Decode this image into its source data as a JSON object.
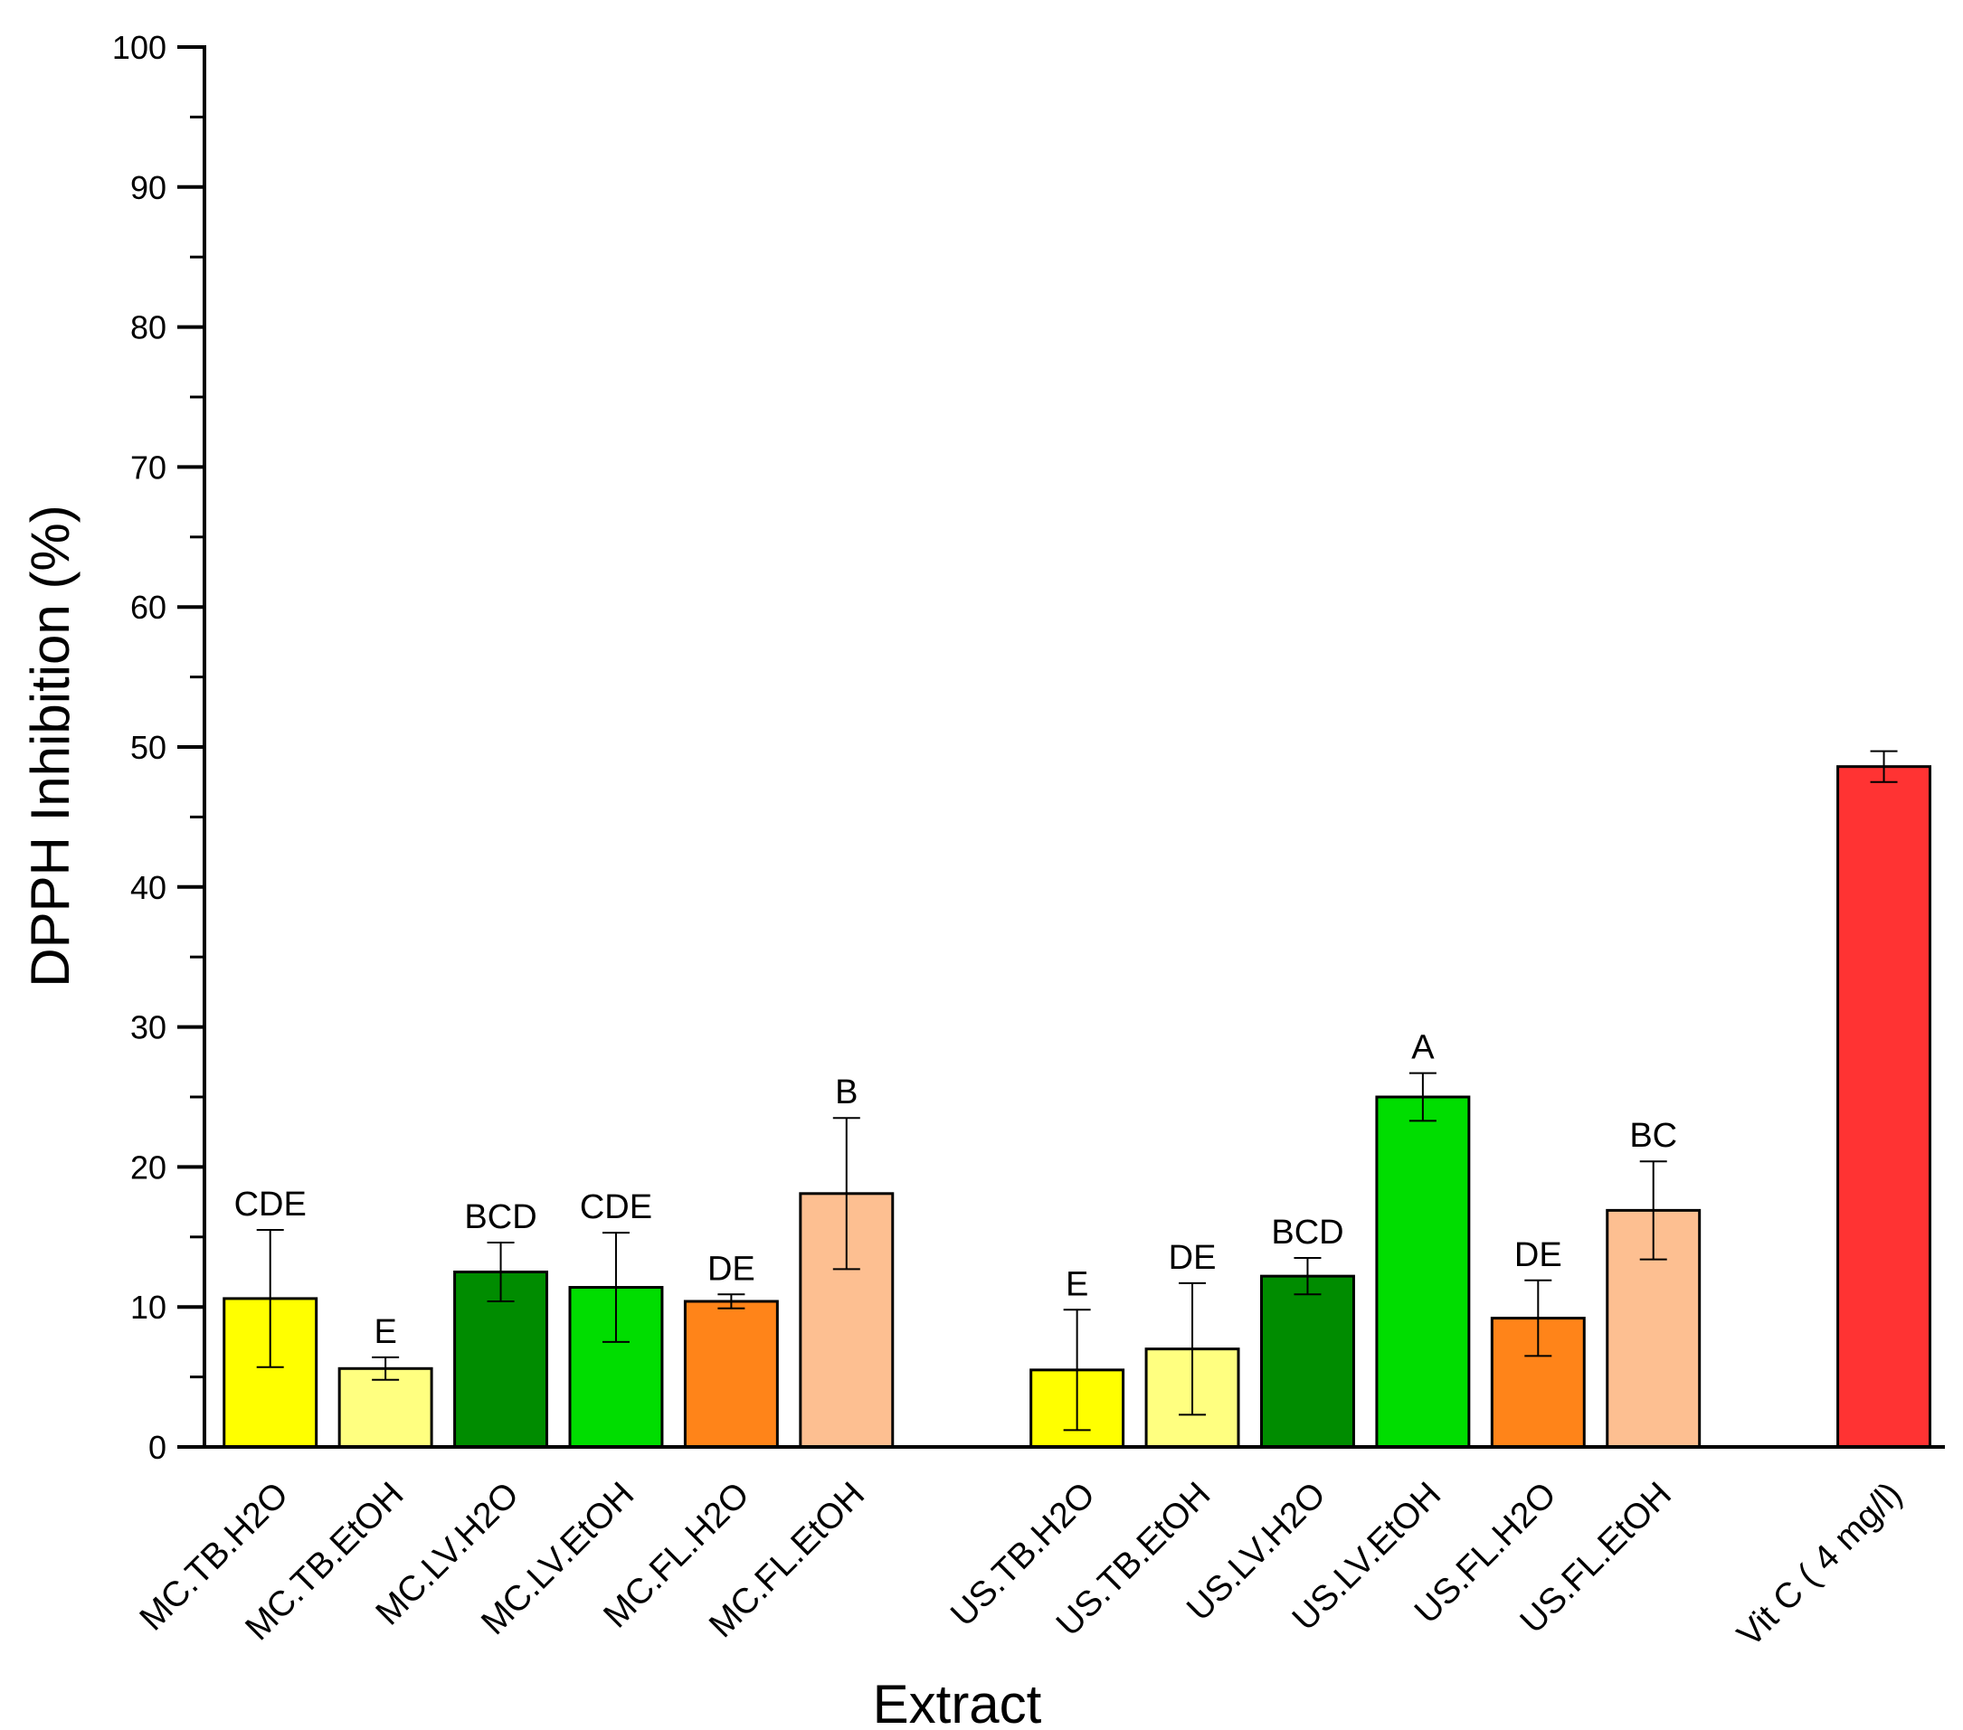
{
  "chart_data": {
    "type": "bar",
    "title": "",
    "xlabel": "Extract",
    "ylabel": "DPPH Inhibition (%)",
    "ylim": [
      0,
      100
    ],
    "yticks": [
      0,
      10,
      20,
      30,
      40,
      50,
      60,
      70,
      80,
      90,
      100
    ],
    "grid": false,
    "legend": "none",
    "categories": [
      "MC.TB.H2O",
      "MC.TB.EtOH",
      "MC.LV.H2O",
      "MC.LV.EtOH",
      "MC.FL.H2O",
      "MC.FL.EtOH",
      "US.TB.H2O",
      "US.TB.EtOH",
      "US.LV.H2O",
      "US.LV.EtOH",
      "US.FL.H2O",
      "US.FL.EtOH",
      "Vit C ( 4 mg/l)"
    ],
    "groups": [
      0,
      0,
      0,
      0,
      0,
      0,
      1,
      1,
      1,
      1,
      1,
      1,
      2
    ],
    "values": [
      10.6,
      5.6,
      12.5,
      11.4,
      10.4,
      18.1,
      5.5,
      7.0,
      12.2,
      25.0,
      9.2,
      16.9,
      48.6
    ],
    "errors": [
      4.9,
      0.8,
      2.1,
      3.9,
      0.5,
      5.4,
      4.3,
      4.7,
      1.3,
      1.7,
      2.7,
      3.5,
      1.1
    ],
    "significance": [
      "CDE",
      "E",
      "BCD",
      "CDE",
      "DE",
      "B",
      "E",
      "DE",
      "BCD",
      "A",
      "DE",
      "BC",
      ""
    ],
    "colors": [
      "#ffff00",
      "#ffff80",
      "#008c00",
      "#00dd00",
      "#ff8419",
      "#fdbf91",
      "#ffff00",
      "#ffff80",
      "#008c00",
      "#00dd00",
      "#ff8419",
      "#fdbf91",
      "#ff3333"
    ]
  }
}
